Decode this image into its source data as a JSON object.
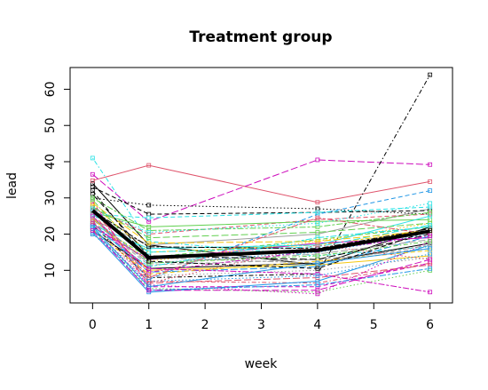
{
  "chart_data": {
    "type": "line",
    "title": "Treatment group",
    "xlabel": "week",
    "ylabel": "lead",
    "x": [
      0,
      1,
      4,
      6
    ],
    "xticks": [
      0,
      1,
      2,
      3,
      4,
      5,
      6
    ],
    "yticks": [
      10,
      20,
      30,
      40,
      50,
      60
    ],
    "xlim": [
      -0.4,
      6.4
    ],
    "ylim": [
      1,
      66
    ],
    "grid": false,
    "legend": "none",
    "mean_series": {
      "color": "#000000",
      "values": [
        26.5,
        13.5,
        15.5,
        20.8
      ]
    },
    "series": [
      {
        "color": "#000000",
        "dash": "solid",
        "values": [
          34.0,
          17.0,
          11.5,
          22.0
        ]
      },
      {
        "color": "#DF536B",
        "dash": "solid",
        "values": [
          34.8,
          39.0,
          28.8,
          34.5
        ]
      },
      {
        "color": "#61D04F",
        "dash": "dash",
        "values": [
          23.0,
          13.5,
          18.5,
          22.0
        ]
      },
      {
        "color": "#2297E6",
        "dash": "dot",
        "values": [
          24.5,
          12.0,
          15.0,
          20.0
        ]
      },
      {
        "color": "#28E2E5",
        "dash": "dotdash",
        "values": [
          41.0,
          18.0,
          14.0,
          16.5
        ]
      },
      {
        "color": "#CD0BBC",
        "dash": "longdash",
        "values": [
          36.5,
          23.5,
          40.5,
          39.2
        ]
      },
      {
        "color": "#F5C710",
        "dash": "twodash",
        "values": [
          28.0,
          15.0,
          17.0,
          21.0
        ]
      },
      {
        "color": "#9E9E9E",
        "dash": "solid",
        "values": [
          24.0,
          17.0,
          20.0,
          27.0
        ]
      },
      {
        "color": "#000000",
        "dash": "dotdash",
        "values": [
          22.5,
          8.0,
          9.0,
          64.0
        ]
      },
      {
        "color": "#000000",
        "dash": "dot",
        "values": [
          30.0,
          28.0,
          27.0,
          25.5
        ]
      },
      {
        "color": "#000000",
        "dash": "dash",
        "values": [
          33.0,
          25.5,
          26.0,
          26.5
        ]
      },
      {
        "color": "#DF536B",
        "dash": "dash",
        "values": [
          27.0,
          20.0,
          24.0,
          25.5
        ]
      },
      {
        "color": "#61D04F",
        "dash": "solid",
        "values": [
          26.0,
          22.0,
          23.5,
          24.0
        ]
      },
      {
        "color": "#2297E6",
        "dash": "dash",
        "values": [
          25.0,
          7.5,
          25.5,
          32.0
        ]
      },
      {
        "color": "#28E2E5",
        "dash": "dash",
        "values": [
          25.5,
          24.5,
          26.0,
          27.5
        ]
      },
      {
        "color": "#CD0BBC",
        "dash": "solid",
        "values": [
          22.0,
          13.0,
          17.5,
          19.0
        ]
      },
      {
        "color": "#F5C710",
        "dash": "dot",
        "values": [
          24.0,
          12.5,
          18.0,
          23.0
        ]
      },
      {
        "color": "#9E9E9E",
        "dash": "dash",
        "values": [
          23.5,
          11.5,
          13.0,
          16.0
        ]
      },
      {
        "color": "#000000",
        "dash": "solid",
        "values": [
          21.0,
          10.5,
          12.0,
          17.5
        ]
      },
      {
        "color": "#DF536B",
        "dash": "dotdash",
        "values": [
          28.0,
          7.0,
          6.5,
          12.0
        ]
      },
      {
        "color": "#61D04F",
        "dash": "dot",
        "values": [
          21.5,
          5.0,
          4.0,
          10.0
        ]
      },
      {
        "color": "#2297E6",
        "dash": "solid",
        "values": [
          20.5,
          4.0,
          7.0,
          17.0
        ]
      },
      {
        "color": "#28E2E5",
        "dash": "solid",
        "values": [
          22.5,
          16.0,
          17.0,
          25.0
        ]
      },
      {
        "color": "#CD0BBC",
        "dash": "dash",
        "values": [
          29.0,
          5.5,
          5.5,
          12.0
        ]
      },
      {
        "color": "#F5C710",
        "dash": "solid",
        "values": [
          24.5,
          10.0,
          11.5,
          14.0
        ]
      },
      {
        "color": "#9E9E9E",
        "dash": "dot",
        "values": [
          20.0,
          8.5,
          10.0,
          13.5
        ]
      },
      {
        "color": "#000000",
        "dash": "longdash",
        "values": [
          31.0,
          14.0,
          13.0,
          20.0
        ]
      },
      {
        "color": "#DF536B",
        "dash": "longdash",
        "values": [
          26.0,
          6.5,
          8.0,
          11.5
        ]
      },
      {
        "color": "#61D04F",
        "dash": "longdash",
        "values": [
          27.5,
          19.0,
          20.5,
          23.0
        ]
      },
      {
        "color": "#2297E6",
        "dash": "longdash",
        "values": [
          23.0,
          9.5,
          11.0,
          19.5
        ]
      },
      {
        "color": "#28E2E5",
        "dash": "longdash",
        "values": [
          25.5,
          15.0,
          16.5,
          22.5
        ]
      },
      {
        "color": "#CD0BBC",
        "dash": "dot",
        "values": [
          22.0,
          6.0,
          3.5,
          18.0
        ]
      },
      {
        "color": "#F5C710",
        "dash": "dash",
        "values": [
          21.0,
          9.0,
          12.5,
          15.5
        ]
      },
      {
        "color": "#9E9E9E",
        "dash": "longdash",
        "values": [
          24.0,
          12.0,
          14.5,
          18.5
        ]
      },
      {
        "color": "#000000",
        "dash": "twodash",
        "values": [
          26.5,
          16.5,
          16.0,
          21.5
        ]
      },
      {
        "color": "#DF536B",
        "dash": "twodash",
        "values": [
          27.0,
          8.0,
          24.5,
          20.0
        ]
      },
      {
        "color": "#61D04F",
        "dash": "twodash",
        "values": [
          30.0,
          21.0,
          22.0,
          26.0
        ]
      },
      {
        "color": "#2297E6",
        "dash": "twodash",
        "values": [
          21.5,
          4.5,
          6.0,
          10.5
        ]
      },
      {
        "color": "#28E2E5",
        "dash": "twodash",
        "values": [
          22.0,
          11.0,
          19.0,
          22.0
        ]
      },
      {
        "color": "#CD0BBC",
        "dash": "twodash",
        "values": [
          23.0,
          10.5,
          9.0,
          4.0
        ]
      },
      {
        "color": "#F5C710",
        "dash": "longdash",
        "values": [
          28.5,
          17.5,
          18.0,
          21.0
        ]
      },
      {
        "color": "#9E9E9E",
        "dash": "twodash",
        "values": [
          26.0,
          13.5,
          12.0,
          17.0
        ]
      },
      {
        "color": "#2297E6",
        "dash": "dot",
        "values": [
          20.0,
          7.0,
          8.5,
          14.5
        ]
      },
      {
        "color": "#CD0BBC",
        "dash": "dotdash",
        "values": [
          25.0,
          9.5,
          15.5,
          19.5
        ]
      },
      {
        "color": "#61D04F",
        "dash": "dotdash",
        "values": [
          29.5,
          12.0,
          14.0,
          18.0
        ]
      },
      {
        "color": "#DF536B",
        "dash": "dot",
        "values": [
          23.5,
          6.5,
          17.0,
          13.0
        ]
      },
      {
        "color": "#28E2E5",
        "dash": "dot",
        "values": [
          27.0,
          20.5,
          23.0,
          28.5
        ]
      },
      {
        "color": "#000000",
        "dash": "dash",
        "values": [
          32.0,
          12.5,
          10.5,
          21.0
        ]
      },
      {
        "color": "#2297E6",
        "dash": "solid",
        "values": [
          22.0,
          5.5,
          12.0,
          16.0
        ]
      },
      {
        "color": "#CD0BBC",
        "dash": "longdash",
        "values": [
          21.0,
          4.5,
          4.5,
          13.0
        ]
      }
    ]
  }
}
